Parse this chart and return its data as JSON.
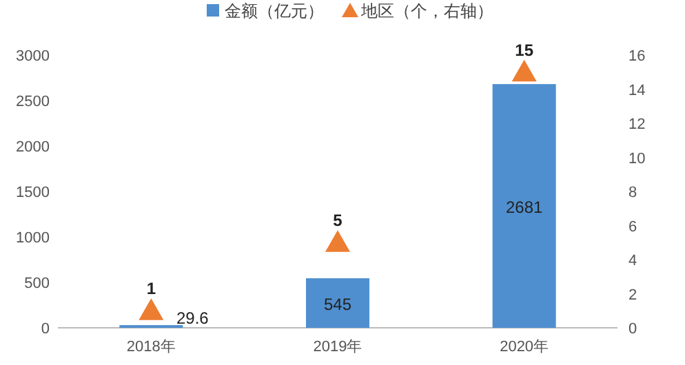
{
  "chart_data": {
    "type": "bar",
    "categories": [
      "2018年",
      "2019年",
      "2020年"
    ],
    "series": [
      {
        "name": "金额（亿元）",
        "color": "#4f8fcf",
        "values": [
          29.6,
          545,
          2681
        ]
      },
      {
        "name": "地区（个，右轴）",
        "type": "scatter",
        "axis": "y2",
        "marker": "triangle",
        "color": "#ed7d31",
        "values": [
          1,
          5,
          15
        ]
      }
    ],
    "ylim": [
      0,
      3000
    ],
    "yticks": [
      0,
      500,
      1000,
      1500,
      2000,
      2500,
      3000
    ],
    "y2lim": [
      0,
      16
    ],
    "y2ticks": [
      0,
      2,
      4,
      6,
      8,
      10,
      12,
      14,
      16
    ],
    "data_labels": true,
    "legend": "top"
  }
}
